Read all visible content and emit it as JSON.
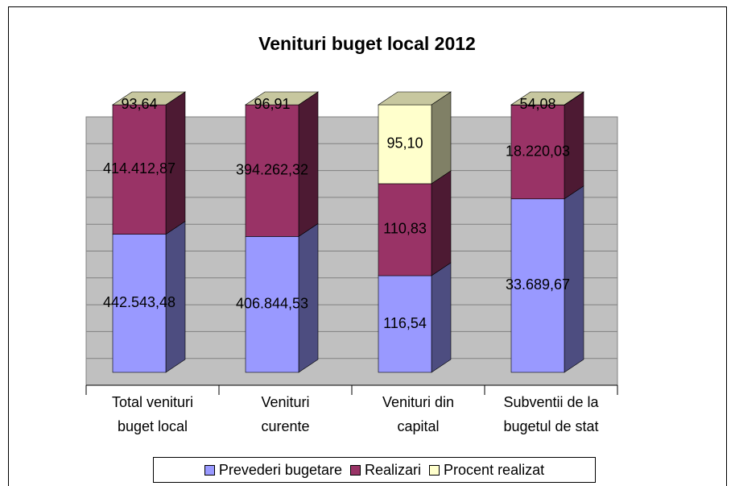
{
  "chart_data": {
    "type": "bar",
    "stacking": "percent",
    "title": "Venituri buget local 2012",
    "categories": [
      "Total venituri\nbuget local",
      "Venituri\ncurente",
      "Venituri din\ncapital",
      "Subventii de la\nbugetul de stat"
    ],
    "series": [
      {
        "name": "Prevederi bugetare",
        "color": "#9999ff",
        "values": [
          442543.48,
          406844.53,
          116.54,
          33689.67
        ],
        "value_labels": [
          "442.543,48",
          "406.844,53",
          "116,54",
          "33.689,67"
        ]
      },
      {
        "name": "Realizari",
        "color": "#993366",
        "values": [
          414412.87,
          394262.32,
          110.83,
          18220.03
        ],
        "value_labels": [
          "414.412,87",
          "394.262,32",
          "110,83",
          "18.220,03"
        ]
      },
      {
        "name": "Procent realizat",
        "color": "#ffffcc",
        "values": [
          93.64,
          96.91,
          95.1,
          54.08
        ],
        "value_labels": [
          "93,64",
          "96,91",
          "95,10",
          "54,08"
        ]
      }
    ],
    "ylim": [
      0,
      100
    ],
    "yticks": [
      0,
      10,
      20,
      30,
      40,
      50,
      60,
      70,
      80,
      90,
      100
    ],
    "grid": true,
    "legend": "bottom"
  }
}
